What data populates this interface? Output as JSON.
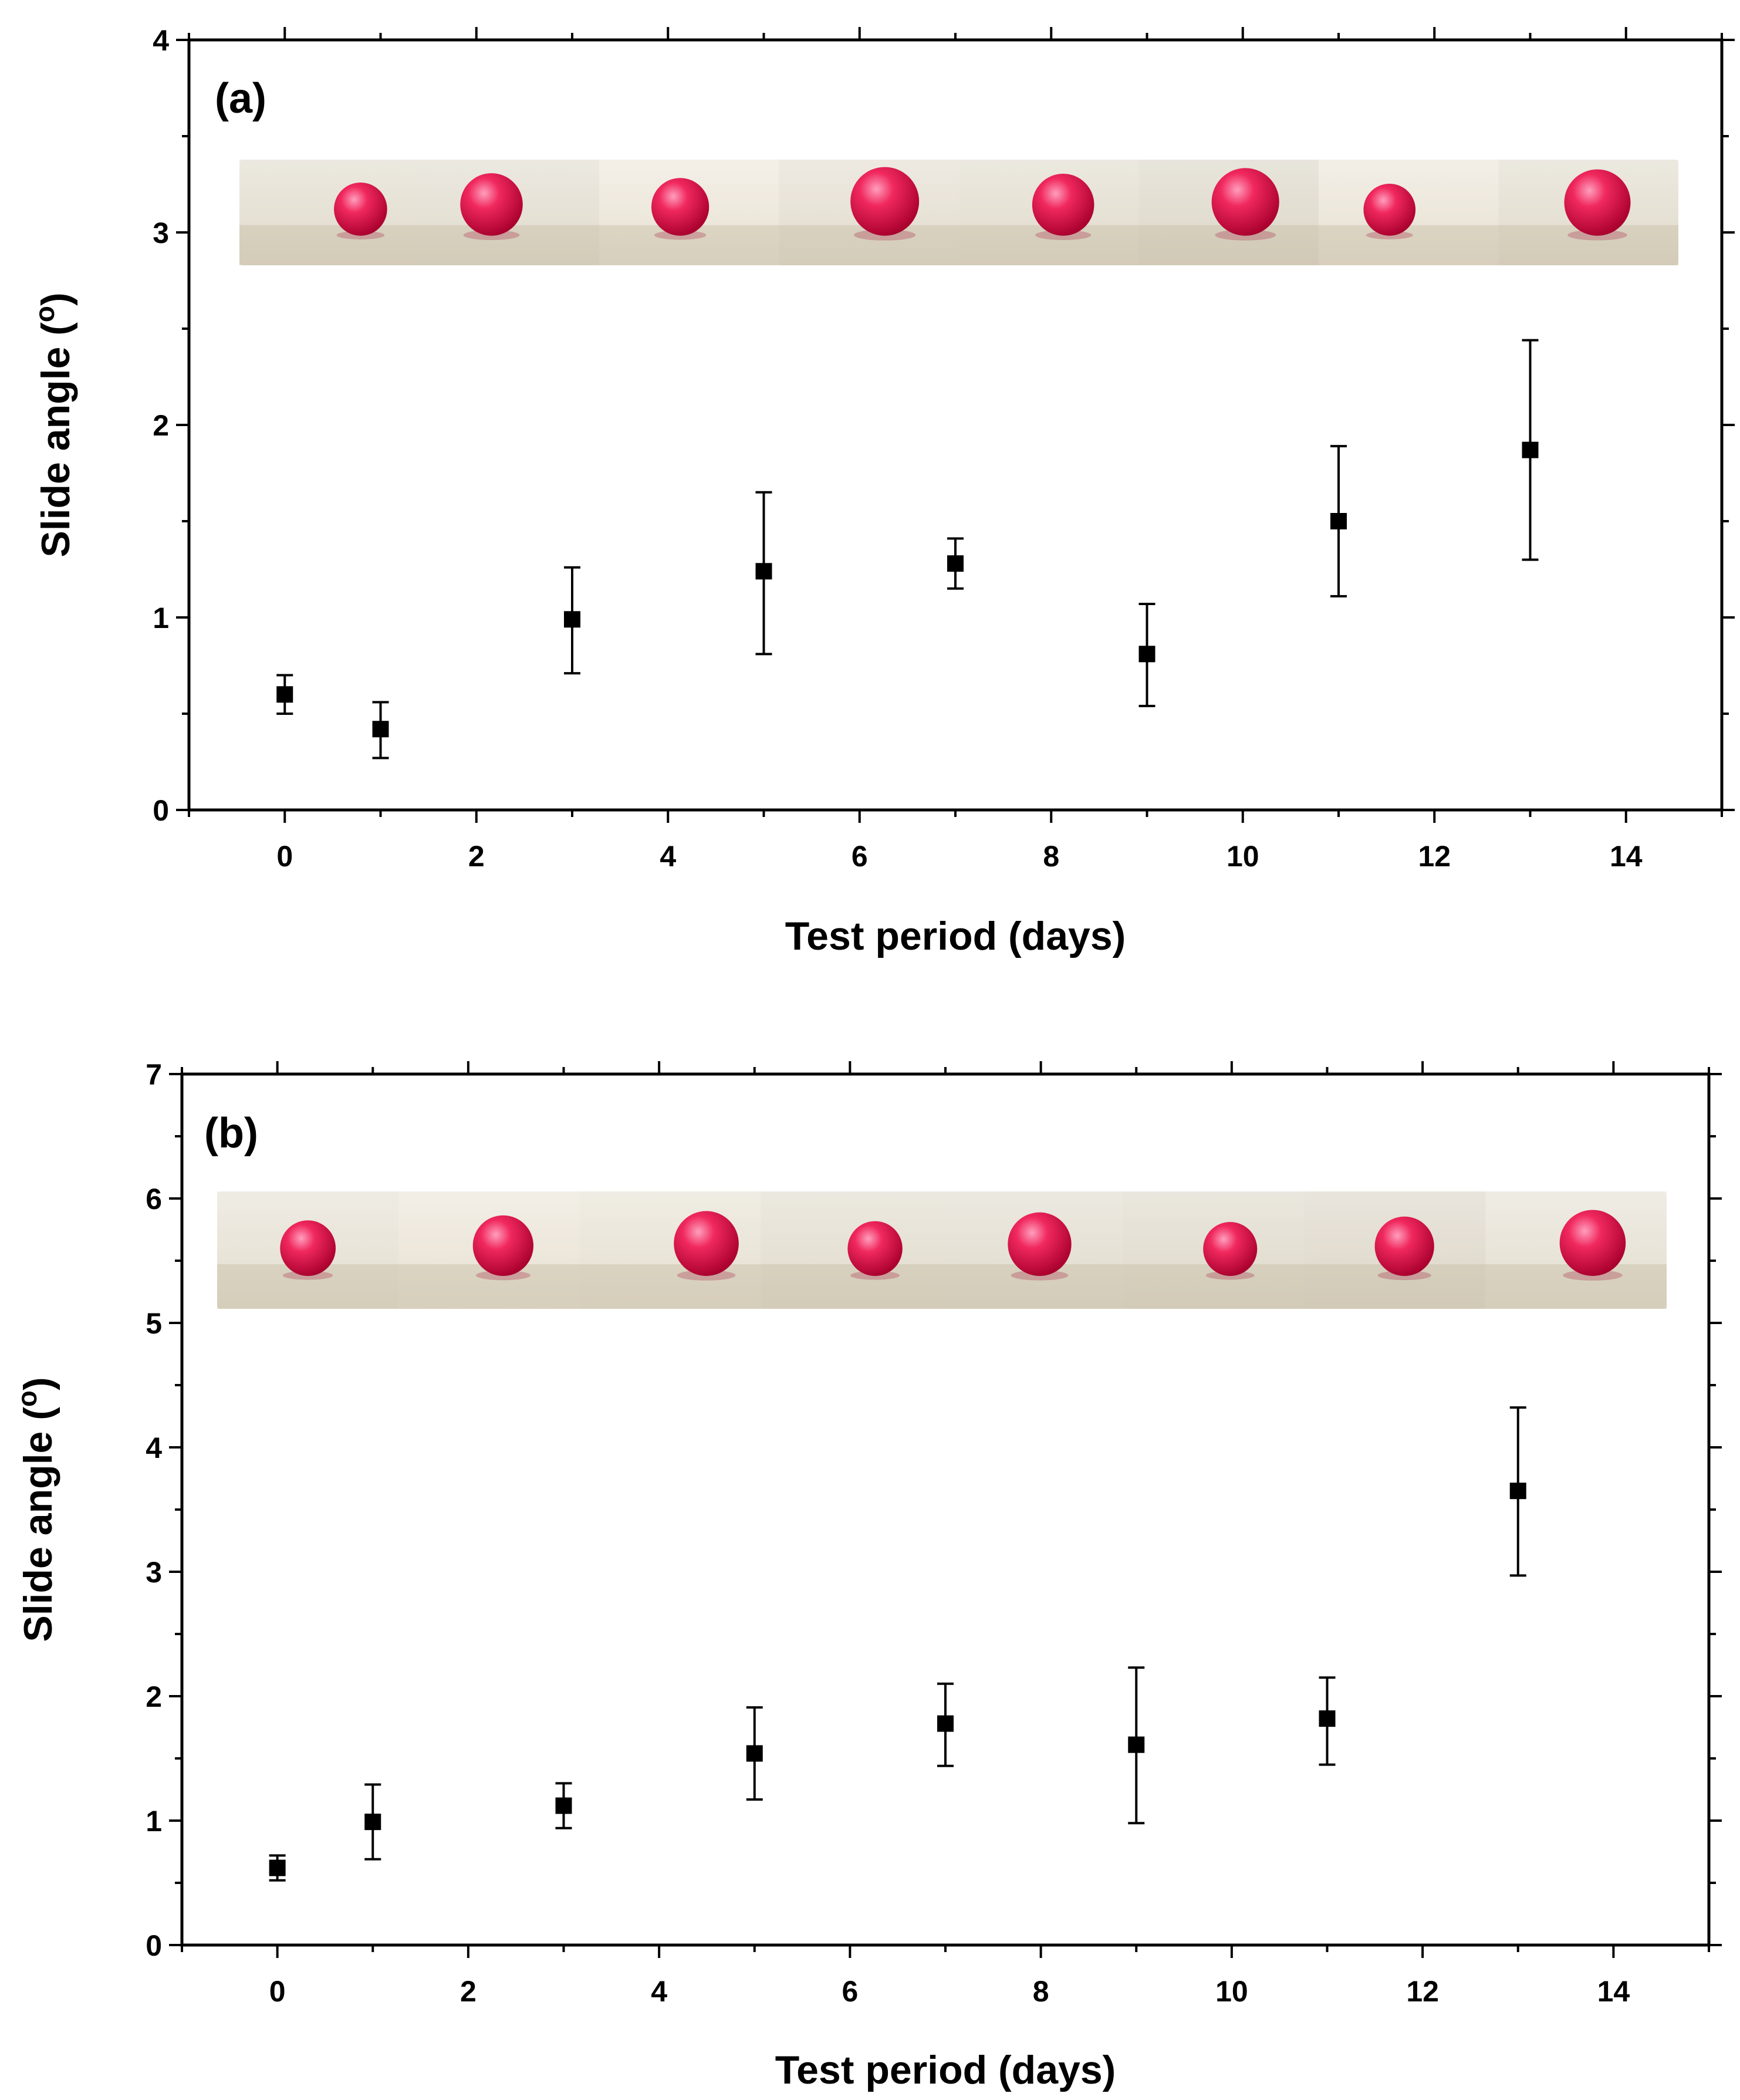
{
  "chart_data": [
    {
      "type": "scatter",
      "panel_label": "(a)",
      "xlabel": "Test period (days)",
      "ylabel": "Slide angle (",
      "ylabel_unit_sup": "o",
      "ylabel_close": ")",
      "xlim": [
        -1,
        15
      ],
      "ylim": [
        0,
        4
      ],
      "x_ticks": [
        0,
        2,
        4,
        6,
        8,
        10,
        12,
        14
      ],
      "y_ticks": [
        0,
        1,
        2,
        3,
        4
      ],
      "x_tick_labels": [
        "0",
        "2",
        "4",
        "6",
        "8",
        "10",
        "12",
        "14"
      ],
      "y_tick_labels": [
        "0",
        "1",
        "2",
        "3",
        "4"
      ],
      "marker": "square",
      "color": "#000000",
      "drop_photo_strip": "photos of a red water droplet on a sand-coated surface, one per measurement day",
      "series": [
        {
          "name": "Slide angle",
          "x": [
            0,
            1,
            3,
            5,
            7,
            9,
            11,
            13
          ],
          "y": [
            0.6,
            0.42,
            0.99,
            1.24,
            1.28,
            0.81,
            1.5,
            1.87
          ],
          "err_low": [
            0.1,
            0.15,
            0.28,
            0.43,
            0.13,
            0.27,
            0.39,
            0.57
          ],
          "err_high": [
            0.1,
            0.14,
            0.27,
            0.41,
            0.13,
            0.26,
            0.39,
            0.57
          ]
        }
      ]
    },
    {
      "type": "scatter",
      "panel_label": "(b)",
      "xlabel": "Test period (days)",
      "ylabel": "Slide angle (",
      "ylabel_unit_sup": "o",
      "ylabel_close": ")",
      "xlim": [
        -1,
        15
      ],
      "ylim": [
        0,
        7
      ],
      "x_ticks": [
        0,
        2,
        4,
        6,
        8,
        10,
        12,
        14
      ],
      "y_ticks": [
        0,
        1,
        2,
        3,
        4,
        5,
        6,
        7
      ],
      "x_tick_labels": [
        "0",
        "2",
        "4",
        "6",
        "8",
        "10",
        "12",
        "14"
      ],
      "y_tick_labels": [
        "0",
        "1",
        "2",
        "3",
        "4",
        "5",
        "6",
        "7"
      ],
      "marker": "square",
      "color": "#000000",
      "drop_photo_strip": "photos of a red water droplet on a sand-coated surface, one per measurement day",
      "series": [
        {
          "name": "Slide angle",
          "x": [
            0,
            1,
            3,
            5,
            7,
            9,
            11,
            13
          ],
          "y": [
            0.62,
            0.99,
            1.12,
            1.54,
            1.78,
            1.61,
            1.82,
            3.65
          ],
          "err_low": [
            0.1,
            0.3,
            0.18,
            0.37,
            0.34,
            0.63,
            0.37,
            0.68
          ],
          "err_high": [
            0.1,
            0.3,
            0.18,
            0.37,
            0.32,
            0.62,
            0.33,
            0.67
          ]
        }
      ]
    }
  ],
  "colors": {
    "axis": "#000000",
    "marker": "#000000",
    "droplet": "#e0144a",
    "droplet_highlight": "#ff7aa0",
    "sand": "#ddd6c6",
    "sand_dark": "#c9bfa9",
    "background": "#ffffff"
  }
}
